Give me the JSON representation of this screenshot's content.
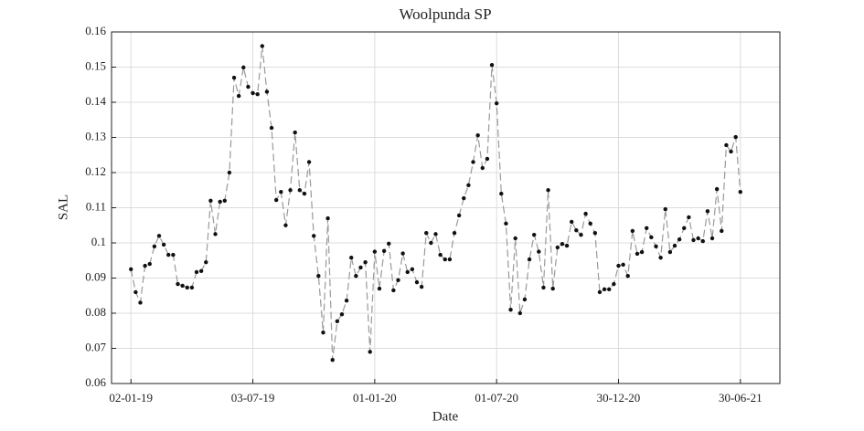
{
  "chart_data": {
    "type": "line",
    "title": "Woolpunda SP",
    "x_label": "Date",
    "y_label": "SAL",
    "x": [
      "2019-01-02",
      "2019-01-09",
      "2019-01-16",
      "2019-01-23",
      "2019-01-30",
      "2019-02-06",
      "2019-02-13",
      "2019-02-20",
      "2019-02-27",
      "2019-03-06",
      "2019-03-13",
      "2019-03-20",
      "2019-03-27",
      "2019-04-03",
      "2019-04-10",
      "2019-04-17",
      "2019-04-24",
      "2019-05-01",
      "2019-05-08",
      "2019-05-15",
      "2019-05-22",
      "2019-05-29",
      "2019-06-05",
      "2019-06-12",
      "2019-06-19",
      "2019-06-26",
      "2019-07-03",
      "2019-07-10",
      "2019-07-17",
      "2019-07-24",
      "2019-07-31",
      "2019-08-07",
      "2019-08-14",
      "2019-08-21",
      "2019-08-28",
      "2019-09-04",
      "2019-09-11",
      "2019-09-18",
      "2019-09-25",
      "2019-10-02",
      "2019-10-09",
      "2019-10-16",
      "2019-10-23",
      "2019-10-30",
      "2019-11-06",
      "2019-11-13",
      "2019-11-20",
      "2019-11-27",
      "2019-12-04",
      "2019-12-11",
      "2019-12-18",
      "2019-12-25",
      "2020-01-01",
      "2020-01-08",
      "2020-01-15",
      "2020-01-22",
      "2020-01-29",
      "2020-02-05",
      "2020-02-12",
      "2020-02-19",
      "2020-02-26",
      "2020-03-04",
      "2020-03-11",
      "2020-03-18",
      "2020-03-25",
      "2020-04-01",
      "2020-04-08",
      "2020-04-15",
      "2020-04-22",
      "2020-04-29",
      "2020-05-06",
      "2020-05-13",
      "2020-05-20",
      "2020-05-27",
      "2020-06-03",
      "2020-06-10",
      "2020-06-17",
      "2020-06-24",
      "2020-07-01",
      "2020-07-08",
      "2020-07-15",
      "2020-07-22",
      "2020-07-29",
      "2020-08-05",
      "2020-08-12",
      "2020-08-19",
      "2020-08-26",
      "2020-09-02",
      "2020-09-09",
      "2020-09-16",
      "2020-09-23",
      "2020-09-30",
      "2020-10-07",
      "2020-10-14",
      "2020-10-21",
      "2020-10-28",
      "2020-11-04",
      "2020-11-11",
      "2020-11-18",
      "2020-11-25",
      "2020-12-02",
      "2020-12-09",
      "2020-12-16",
      "2020-12-23",
      "2020-12-30",
      "2021-01-06",
      "2021-01-13",
      "2021-01-20",
      "2021-01-27",
      "2021-02-03",
      "2021-02-10",
      "2021-02-17",
      "2021-02-24",
      "2021-03-03",
      "2021-03-10",
      "2021-03-17",
      "2021-03-24",
      "2021-03-31",
      "2021-04-07",
      "2021-04-14",
      "2021-04-21",
      "2021-04-28",
      "2021-05-05",
      "2021-05-12",
      "2021-05-19",
      "2021-05-26",
      "2021-06-02",
      "2021-06-09",
      "2021-06-16",
      "2021-06-23",
      "2021-06-30"
    ],
    "values": [
      0.0925,
      0.086,
      0.083,
      0.0935,
      0.094,
      0.099,
      0.102,
      0.0995,
      0.0966,
      0.0966,
      0.0883,
      0.0878,
      0.0873,
      0.0873,
      0.0917,
      0.092,
      0.0945,
      0.112,
      0.1025,
      0.1117,
      0.112,
      0.12,
      0.147,
      0.1418,
      0.1499,
      0.1444,
      0.1426,
      0.1423,
      0.156,
      0.143,
      0.1327,
      0.1122,
      0.1145,
      0.105,
      0.115,
      0.1314,
      0.115,
      0.114,
      0.123,
      0.102,
      0.0906,
      0.0745,
      0.107,
      0.0667,
      0.0777,
      0.0797,
      0.0836,
      0.0958,
      0.0906,
      0.093,
      0.0945,
      0.069,
      0.0975,
      0.087,
      0.0977,
      0.0998,
      0.0865,
      0.0894,
      0.097,
      0.0917,
      0.0925,
      0.0888,
      0.0875,
      0.1028,
      0.1,
      0.1025,
      0.0966,
      0.0953,
      0.0953,
      0.1028,
      0.1078,
      0.1127,
      0.1164,
      0.123,
      0.1306,
      0.1213,
      0.1239,
      0.1506,
      0.1397,
      0.114,
      0.1055,
      0.081,
      0.1013,
      0.08,
      0.0839,
      0.0953,
      0.1023,
      0.0975,
      0.0873,
      0.115,
      0.087,
      0.0987,
      0.0997,
      0.0992,
      0.106,
      0.1036,
      0.1023,
      0.1083,
      0.1055,
      0.1028,
      0.086,
      0.0868,
      0.0868,
      0.0883,
      0.0935,
      0.0938,
      0.0906,
      0.1034,
      0.0969,
      0.0974,
      0.1042,
      0.1016,
      0.099,
      0.0958,
      0.1096,
      0.0974,
      0.0992,
      0.101,
      0.1042,
      0.1073,
      0.1008,
      0.1013,
      0.1005,
      0.109,
      0.1013,
      0.1153,
      0.1034,
      0.1278,
      0.126,
      0.1301,
      0.1145
    ],
    "xlim": [
      "2018-12-04",
      "2021-08-28"
    ],
    "xticks": [
      {
        "value": "2019-01-02",
        "label": "02-01-19"
      },
      {
        "value": "2019-07-03",
        "label": "03-07-19"
      },
      {
        "value": "2020-01-01",
        "label": "01-01-20"
      },
      {
        "value": "2020-07-01",
        "label": "01-07-20"
      },
      {
        "value": "2020-12-30",
        "label": "30-12-20"
      },
      {
        "value": "2021-06-30",
        "label": "30-06-21"
      }
    ],
    "ylim": [
      0.06,
      0.16
    ],
    "yticks": [
      0.06,
      0.07,
      0.08,
      0.09,
      0.1,
      0.11,
      0.12,
      0.13,
      0.14,
      0.15,
      0.16
    ],
    "grid": true,
    "line_color": "#9a9a9a",
    "line_dash": "8 4",
    "marker_color": "#111111"
  }
}
